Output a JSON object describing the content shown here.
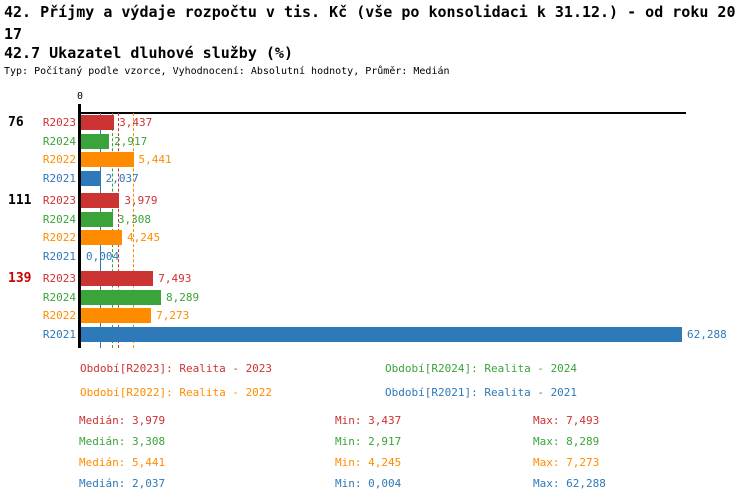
{
  "header": {
    "title_line1": "42. Příjmy a výdaje rozpočtu v tis. Kč (vše po konsolidaci k 31.12.) - od roku 20",
    "title_line2": "17",
    "subtitle": "42.7 Ukazatel dluhové služby (%)",
    "meta": "Typ: Počítaný podle vzorce, Vyhodnocení: Absolutní hodnoty, Průměr: Medián"
  },
  "colors": {
    "r2023": "#cc3333",
    "r2024": "#3aa43a",
    "r2022": "#ff8c00",
    "r2021": "#2e79b8",
    "axis": "#000000",
    "group_highlight": "#cc0000",
    "group_normal": "#000000"
  },
  "chart_data": {
    "type": "bar",
    "orientation": "horizontal",
    "unit": "%",
    "title": "42.7 Ukazatel dluhové služby (%)",
    "axis_zero_label": "0",
    "xlim": [
      0,
      63
    ],
    "grid": false,
    "median_lines_shown": true,
    "series": [
      {
        "id": "R2023",
        "color_key": "r2023",
        "legend": "Období[R2023]: Realita - 2023",
        "median": 3.979
      },
      {
        "id": "R2024",
        "color_key": "r2024",
        "legend": "Období[R2024]: Realita - 2024",
        "median": 3.308
      },
      {
        "id": "R2022",
        "color_key": "r2022",
        "legend": "Období[R2022]: Realita - 2022",
        "median": 5.441
      },
      {
        "id": "R2021",
        "color_key": "r2021",
        "legend": "Období[R2021]: Realita - 2021",
        "median": 2.037
      }
    ],
    "groups": [
      {
        "label": "76",
        "highlight": false,
        "bars": [
          {
            "series": "R2023",
            "value": 3.437,
            "display": "3,437"
          },
          {
            "series": "R2024",
            "value": 2.917,
            "display": "2,917"
          },
          {
            "series": "R2022",
            "value": 5.441,
            "display": "5,441"
          },
          {
            "series": "R2021",
            "value": 2.037,
            "display": "2,037"
          }
        ]
      },
      {
        "label": "111",
        "highlight": false,
        "bars": [
          {
            "series": "R2023",
            "value": 3.979,
            "display": "3,979"
          },
          {
            "series": "R2024",
            "value": 3.308,
            "display": "3,308"
          },
          {
            "series": "R2022",
            "value": 4.245,
            "display": "4,245"
          },
          {
            "series": "R2021",
            "value": 0.004,
            "display": "0,004"
          }
        ]
      },
      {
        "label": "139",
        "highlight": true,
        "bars": [
          {
            "series": "R2023",
            "value": 7.493,
            "display": "7,493"
          },
          {
            "series": "R2024",
            "value": 8.289,
            "display": "8,289"
          },
          {
            "series": "R2022",
            "value": 7.273,
            "display": "7,273"
          },
          {
            "series": "R2021",
            "value": 62.288,
            "display": "62,288"
          }
        ]
      }
    ]
  },
  "legend": {
    "entries": [
      {
        "series": "R2023",
        "color_key": "r2023",
        "text": "Období[R2023]: Realita - 2023"
      },
      {
        "series": "R2024",
        "color_key": "r2024",
        "text": "Období[R2024]: Realita - 2024"
      },
      {
        "series": "R2022",
        "color_key": "r2022",
        "text": "Období[R2022]: Realita - 2022"
      },
      {
        "series": "R2021",
        "color_key": "r2021",
        "text": "Období[R2021]: Realita - 2021"
      }
    ]
  },
  "stats": {
    "labels": {
      "median": "Medián",
      "min": "Min",
      "max": "Max"
    },
    "rows": [
      {
        "series": "R2023",
        "color_key": "r2023",
        "median": "3,979",
        "min": "3,437",
        "max": "7,493"
      },
      {
        "series": "R2024",
        "color_key": "r2024",
        "median": "3,308",
        "min": "2,917",
        "max": "8,289"
      },
      {
        "series": "R2022",
        "color_key": "r2022",
        "median": "5,441",
        "min": "4,245",
        "max": "7,273"
      },
      {
        "series": "R2021",
        "color_key": "r2021",
        "median": "2,037",
        "min": "0,004",
        "max": "62,288"
      }
    ]
  }
}
